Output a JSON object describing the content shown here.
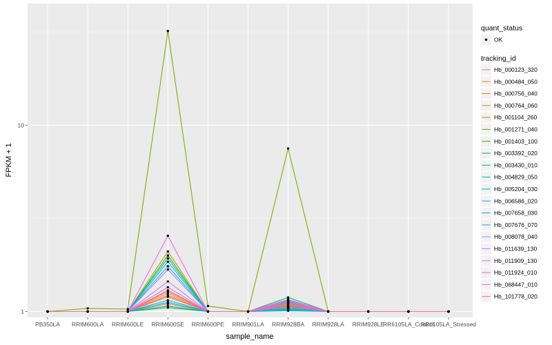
{
  "chart_data": {
    "type": "line",
    "xlabel": "sample_name",
    "ylabel": "FPKM + 1",
    "y_scale": "log10",
    "ylim": [
      0.93,
      45
    ],
    "y_ticks": [
      1,
      10
    ],
    "grid": true,
    "legend_position": "right",
    "categories": [
      "PB350LA",
      "RRIM600LA",
      "RRIM600LE",
      "RRIM600SE",
      "RRIM600PE",
      "RRIM901LA",
      "RRIM928BA",
      "RRIM928LA",
      "RRIM928LE",
      "RRII105LA_Control",
      "RRII105LA_Stressed"
    ],
    "quant_status_legend": {
      "title": "quant_status",
      "entries": [
        "OK"
      ]
    },
    "legend_title": "tracking_id",
    "series": [
      {
        "name": "Hb_000123_320",
        "color": "#F8766D",
        "values": [
          1,
          1,
          1,
          1.1,
          1,
          1,
          1.02,
          1,
          1,
          1,
          1
        ]
      },
      {
        "name": "Hb_000484_050",
        "color": "#EE8044",
        "values": [
          1,
          1,
          1,
          1.25,
          1,
          1,
          1.05,
          1,
          1,
          1,
          1
        ]
      },
      {
        "name": "Hb_000756_040",
        "color": "#DE8C00",
        "values": [
          1,
          1,
          1,
          1.2,
          1,
          1,
          1.08,
          1,
          1,
          1,
          1
        ]
      },
      {
        "name": "Hb_000764_060",
        "color": "#C99800",
        "values": [
          1,
          1,
          1,
          1.3,
          1,
          1,
          1.06,
          1,
          1,
          1,
          1
        ]
      },
      {
        "name": "Hb_001104_260",
        "color": "#AEA200",
        "values": [
          1,
          1,
          1,
          2.1,
          1,
          1,
          1.1,
          1,
          1,
          1,
          1
        ]
      },
      {
        "name": "Hb_001271_040",
        "color": "#7CAE00",
        "values": [
          1,
          1.04,
          1.03,
          32,
          1.07,
          1,
          7.5,
          1,
          1,
          1,
          1
        ]
      },
      {
        "name": "Hb_001403_100",
        "color": "#39B600",
        "values": [
          1,
          1,
          1,
          2.0,
          1,
          1,
          1.12,
          1,
          1,
          1,
          1
        ]
      },
      {
        "name": "Hb_003392_020",
        "color": "#00BB4E",
        "values": [
          1,
          1,
          1,
          1.07,
          1,
          1,
          1.19,
          1,
          1,
          1,
          1
        ]
      },
      {
        "name": "Hb_003430_010",
        "color": "#00BF7D",
        "values": [
          1,
          1,
          1,
          1.05,
          1,
          1,
          1.15,
          1,
          1,
          1,
          1
        ]
      },
      {
        "name": "Hb_004829_050",
        "color": "#00C1A3",
        "values": [
          1,
          1,
          1,
          1.85,
          1,
          1,
          1.04,
          1,
          1,
          1,
          1
        ]
      },
      {
        "name": "Hb_005204_030",
        "color": "#00BFC4",
        "values": [
          1,
          1,
          1,
          1.15,
          1,
          1,
          1.03,
          1,
          1,
          1,
          1
        ]
      },
      {
        "name": "Hb_006586_020",
        "color": "#00BAE0",
        "values": [
          1,
          1,
          1,
          1.93,
          1,
          1,
          1.02,
          1,
          1,
          1,
          1
        ]
      },
      {
        "name": "Hb_007658_030",
        "color": "#00B0F6",
        "values": [
          1,
          1,
          1,
          1.12,
          1,
          1,
          1.01,
          1,
          1,
          1,
          1
        ]
      },
      {
        "name": "Hb_007676_070",
        "color": "#35A2FF",
        "values": [
          1,
          1,
          1,
          1.75,
          1,
          1,
          1.07,
          1,
          1,
          1,
          1
        ]
      },
      {
        "name": "Hb_008078_040",
        "color": "#9590FF",
        "values": [
          1,
          1,
          1,
          1.68,
          1,
          1,
          1.13,
          1,
          1,
          1,
          1
        ]
      },
      {
        "name": "Hb_011639_130",
        "color": "#C77CFF",
        "values": [
          1,
          1,
          1,
          1.45,
          1,
          1,
          1.14,
          1,
          1,
          1,
          1
        ]
      },
      {
        "name": "Hb_011909_130",
        "color": "#E76BF3",
        "values": [
          1,
          1,
          1,
          2.55,
          1,
          1,
          1.16,
          1,
          1,
          1,
          1
        ]
      },
      {
        "name": "Hb_011924_010",
        "color": "#FA62DB",
        "values": [
          1,
          1,
          1,
          1.35,
          1,
          1,
          1.09,
          1,
          1,
          1,
          1
        ]
      },
      {
        "name": "Hb_068447_010",
        "color": "#FF62BC",
        "values": [
          1,
          1,
          1,
          1.28,
          1,
          1,
          1.11,
          1,
          1,
          1,
          1
        ]
      },
      {
        "name": "Hb_101778_020",
        "color": "#FF6C91",
        "values": [
          1,
          1,
          1,
          1.22,
          1,
          1,
          1.06,
          1,
          1,
          1,
          1
        ]
      }
    ]
  }
}
